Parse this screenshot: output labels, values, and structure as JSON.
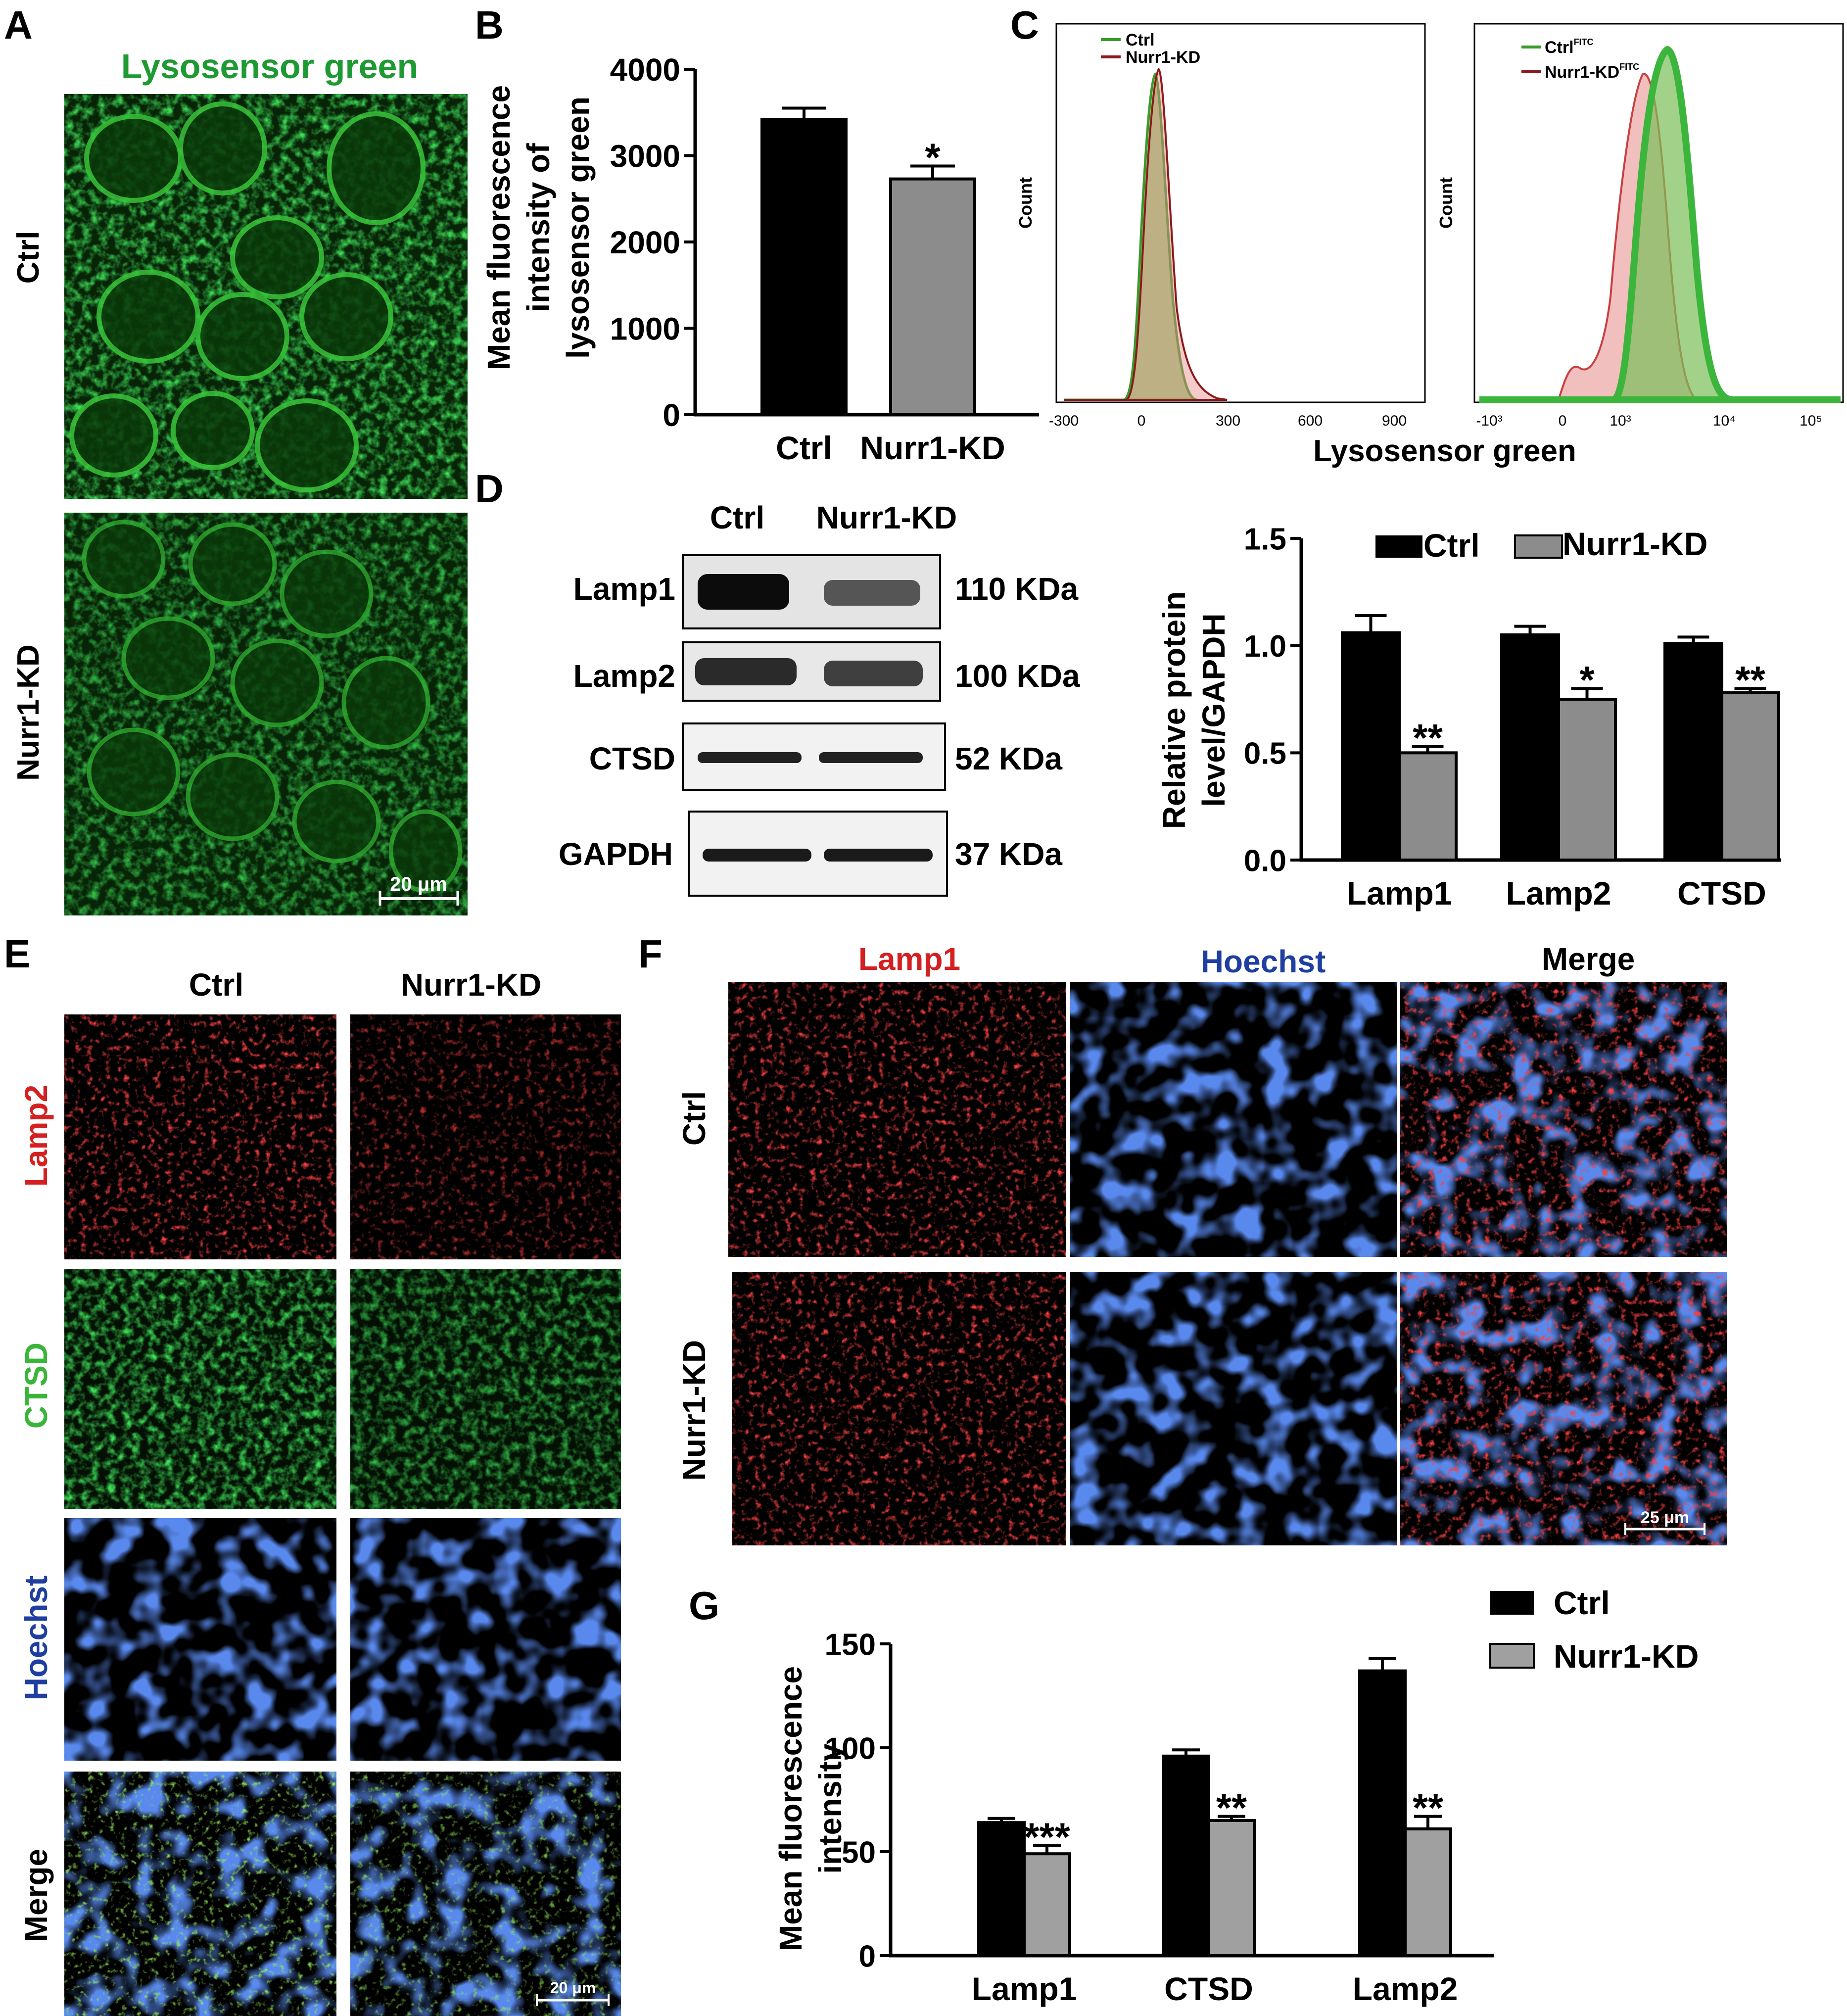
{
  "panel_letters": [
    "A",
    "B",
    "C",
    "D",
    "E",
    "F",
    "G"
  ],
  "panelA": {
    "title": "Lysosensor green",
    "rows": [
      "Ctrl",
      "Nurr1-KD"
    ],
    "scalebar": "20 μm",
    "colors": {
      "signal": "#2db82d",
      "title": "#1e9a32"
    }
  },
  "panelB": {
    "ylabel_lines": [
      "Mean fluorescence",
      "intensity of",
      "lysosensor green"
    ],
    "significance": [
      "",
      "*"
    ]
  },
  "panelC": {
    "left": {
      "legend": [
        "Ctrl",
        "Nurr1-KD"
      ],
      "ylabel": "Count",
      "xticks": [
        "-300",
        "0",
        "300",
        "600",
        "900"
      ]
    },
    "right": {
      "legend": [
        "Ctrl",
        "Nurr1-KD"
      ],
      "legend_sup": "FITC",
      "ylabel": "Count",
      "xticks": [
        "-10³",
        "0",
        "10³",
        "10⁴",
        "10⁵"
      ]
    },
    "xlabel": "Lysosensor green",
    "colors": {
      "ctrl": "#3a9a2a",
      "kd": "#8b1a1a",
      "ctrl_fill": "#7bbf58",
      "kd_fill": "#e88a8a"
    }
  },
  "panelD": {
    "lanes": [
      "Ctrl",
      "Nurr1-KD"
    ],
    "blots": [
      {
        "protein": "Lamp1",
        "size": "110 KDa"
      },
      {
        "protein": "Lamp2",
        "size": "100 KDa"
      },
      {
        "protein": "CTSD",
        "size": "52 KDa"
      },
      {
        "protein": "GAPDH",
        "size": "37 KDa"
      }
    ],
    "ylabel_lines": [
      "Relative protein",
      "level/GAPDH"
    ],
    "legend": [
      "Ctrl",
      "Nurr1-KD"
    ],
    "significance": [
      "**",
      "*",
      "**"
    ]
  },
  "panelE": {
    "columns": [
      "Ctrl",
      "Nurr1-KD"
    ],
    "rows": [
      "Lamp2",
      "CTSD",
      "Hoechst",
      "Merge"
    ],
    "scalebar": "20 μm",
    "colors": {
      "Lamp2": "#d42020",
      "CTSD": "#3ab53a",
      "Hoechst": "#1f3fa0",
      "Merge": "#000000"
    }
  },
  "panelF": {
    "columns": [
      "Lamp1",
      "Hoechst",
      "Merge"
    ],
    "rows": [
      "Ctrl",
      "Nurr1-KD"
    ],
    "scalebar": "25 μm",
    "colors": {
      "Lamp1": "#d42020",
      "Hoechst": "#1f3fa0",
      "Merge": "#000000"
    }
  },
  "panelG": {
    "ylabel_lines": [
      "Mean fluorescence",
      "intensity"
    ],
    "legend": [
      "Ctrl",
      "Nurr1-KD"
    ],
    "significance": [
      "***",
      "**",
      "**"
    ]
  },
  "chart_data": [
    {
      "id": "B",
      "type": "bar",
      "categories": [
        "Ctrl",
        "Nurr1-KD"
      ],
      "values": [
        3420,
        2730
      ],
      "errors": [
        130,
        150
      ],
      "ylim": [
        0,
        4000
      ],
      "yticks": [
        0,
        1000,
        2000,
        3000,
        4000
      ],
      "bar_colors": [
        "#000000",
        "#8c8c8c"
      ]
    },
    {
      "id": "D",
      "type": "bar",
      "categories": [
        "Lamp1",
        "Lamp2",
        "CTSD"
      ],
      "series": [
        {
          "name": "Ctrl",
          "values": [
            1.06,
            1.05,
            1.01
          ],
          "errors": [
            0.08,
            0.04,
            0.03
          ],
          "color": "#000000"
        },
        {
          "name": "Nurr1-KD",
          "values": [
            0.5,
            0.75,
            0.78
          ],
          "errors": [
            0.03,
            0.05,
            0.02
          ],
          "color": "#8c8c8c"
        }
      ],
      "ylim": [
        0,
        1.5
      ],
      "yticks": [
        "0.0",
        "0.5",
        "1.0",
        "1.5"
      ]
    },
    {
      "id": "G",
      "type": "bar",
      "categories": [
        "Lamp1",
        "CTSD",
        "Lamp2"
      ],
      "series": [
        {
          "name": "Ctrl",
          "values": [
            64,
            96,
            137
          ],
          "errors": [
            2,
            3,
            6
          ],
          "color": "#000000"
        },
        {
          "name": "Nurr1-KD",
          "values": [
            49,
            65,
            61
          ],
          "errors": [
            4,
            2,
            6
          ],
          "color": "#a0a0a0"
        }
      ],
      "ylim": [
        0,
        150
      ],
      "yticks": [
        0,
        50,
        100,
        150
      ]
    }
  ]
}
